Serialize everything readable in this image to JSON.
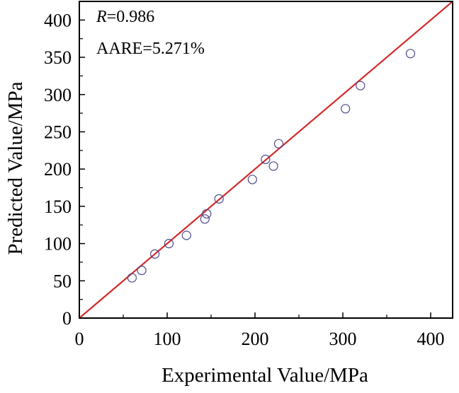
{
  "chart_data": {
    "type": "scatter",
    "xlabel": "Experimental Value/MPa",
    "ylabel": "Predicted Value/MPa",
    "xlim": [
      0,
      425
    ],
    "ylim": [
      0,
      425
    ],
    "x_ticks": [
      0,
      100,
      200,
      300,
      400
    ],
    "y_ticks": [
      0,
      50,
      100,
      150,
      200,
      250,
      300,
      350,
      400
    ],
    "x_tick_labels": [
      "0",
      "100",
      "200",
      "300",
      "400"
    ],
    "y_tick_labels": [
      "0",
      "50",
      "100",
      "150",
      "200",
      "250",
      "300",
      "350",
      "400"
    ],
    "grid": false,
    "annotations": {
      "r_symbol": "R",
      "r_value": "=0.986",
      "aare": "AARE=5.271%"
    },
    "reference_line": {
      "from": [
        0,
        0
      ],
      "to": [
        425,
        425
      ],
      "color": "#d42a2a"
    },
    "marker_color": "#4a4a8c",
    "points": [
      {
        "x": 60,
        "y": 54
      },
      {
        "x": 71,
        "y": 64
      },
      {
        "x": 86,
        "y": 86
      },
      {
        "x": 102,
        "y": 100
      },
      {
        "x": 122,
        "y": 111
      },
      {
        "x": 143,
        "y": 133
      },
      {
        "x": 145,
        "y": 140
      },
      {
        "x": 159,
        "y": 160
      },
      {
        "x": 197,
        "y": 186
      },
      {
        "x": 212,
        "y": 213
      },
      {
        "x": 221,
        "y": 204
      },
      {
        "x": 227,
        "y": 234
      },
      {
        "x": 303,
        "y": 281
      },
      {
        "x": 320,
        "y": 312
      },
      {
        "x": 377,
        "y": 355
      }
    ]
  }
}
